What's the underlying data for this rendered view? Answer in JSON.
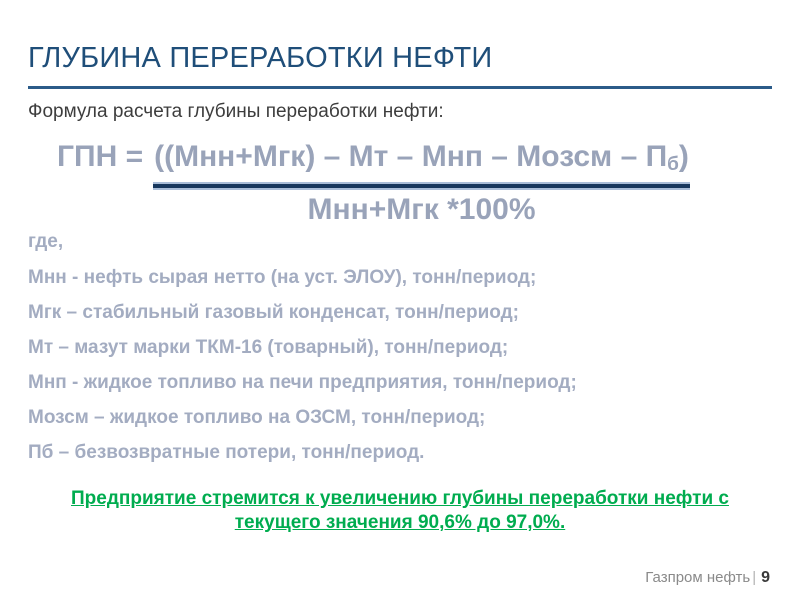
{
  "slide": {
    "title": "ГЛУБИНА ПЕРЕРАБОТКИ НЕФТИ",
    "subtitle": "Формула расчета глубины переработки нефти:",
    "formula": {
      "lhs": "ГПН =",
      "numerator_main": "((Мнн+Мгк) – Мт – Мнп – Мозсм – П",
      "numerator_sub": "б",
      "numerator_close": ")",
      "denominator": "Мнн+Мгк *100%"
    },
    "where_label": "где,",
    "definitions": [
      "Мнн - нефть сырая нетто (на уст. ЭЛОУ), тонн/период;",
      "Мгк – стабильный газовый конденсат, тонн/период;",
      "Мт – мазут марки ТКМ-16 (товарный), тонн/период;",
      "Мнп - жидкое топливо на печи предприятия, тонн/период;",
      "Мозсм – жидкое топливо на ОЗСМ, тонн/период;",
      "Пб – безвозвратные потери, тонн/период."
    ],
    "highlight_lines": [
      "Предприятие стремится к увеличению глубины переработки нефти с",
      "текущего значения 90,6% до 97,0%."
    ],
    "footer": {
      "brand": "Газпром нефть",
      "separator": "|",
      "page_number": "9"
    }
  },
  "colors": {
    "title_blue": "#1F4E79",
    "rule_blue": "#2B5B89",
    "formula_gray_blue": "#99A3B9",
    "fraction_bar_dark": "#17375D",
    "fraction_bar_edge": "#A9BDD8",
    "definitions_gray_blue": "#A3ACC1",
    "highlight_green": "#00AC4F",
    "footer_gray": "#8A8A8A"
  }
}
